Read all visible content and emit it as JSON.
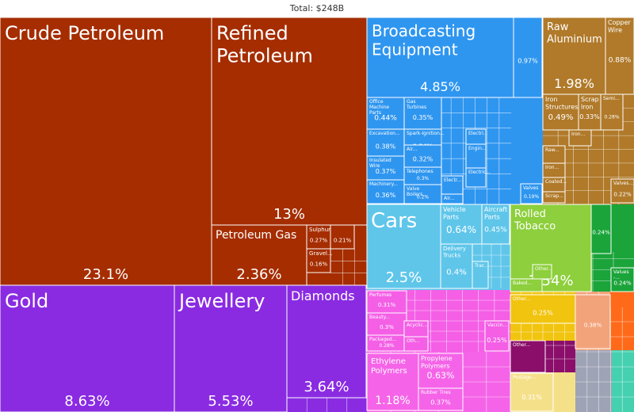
{
  "chart_data": {
    "type": "treemap",
    "title": "Total: $248B",
    "colors": {
      "petroleum": "#A52D00",
      "precious": "#8A2BE2",
      "electronics": "#2F96F0",
      "vehicles": "#5FC6EA",
      "metals": "#B07A2A",
      "tobacco": "#8DCF3C",
      "tobacco_dark": "#1BA43A",
      "chemicals": "#F45FE6",
      "plastics": "#F564E8",
      "stone": "#F1C40F",
      "purple_dark": "#8B0E6B",
      "textiles": "#F5E08A",
      "wood": "#F3A37A",
      "orange": "#FF6A1A",
      "gray": "#9EA3B5",
      "teal": "#45D0B0"
    },
    "items": [
      {
        "name": "Crude Petroleum",
        "value": "23.1%",
        "group": "petroleum"
      },
      {
        "name": "Refined Petroleum",
        "value": "13%",
        "group": "petroleum"
      },
      {
        "name": "Petroleum Gas",
        "value": "2.36%",
        "group": "petroleum"
      },
      {
        "name": "Sulphur",
        "value": "0.27%",
        "group": "petroleum"
      },
      {
        "name": "",
        "value": "0.21%",
        "group": "petroleum"
      },
      {
        "name": "Gravel...",
        "value": "0.16%",
        "group": "petroleum"
      },
      {
        "name": "Gold",
        "value": "8.63%",
        "group": "precious"
      },
      {
        "name": "Jewellery",
        "value": "5.53%",
        "group": "precious"
      },
      {
        "name": "Diamonds",
        "value": "3.64%",
        "group": "precious"
      },
      {
        "name": "Broadcasting Equipment",
        "value": "4.85%",
        "group": "electronics"
      },
      {
        "name": "",
        "value": "0.97%",
        "group": "electronics"
      },
      {
        "name": "Office Machine Parts",
        "value": "0.44%",
        "group": "electronics"
      },
      {
        "name": "Gas Turbines",
        "value": "0.35%",
        "group": "electronics"
      },
      {
        "name": "Excavation...",
        "value": "0.38%",
        "group": "electronics"
      },
      {
        "name": "Spark-Ignition...",
        "value": "0.34%",
        "group": "electronics"
      },
      {
        "name": "Insulated Wire",
        "value": "0.37%",
        "group": "electronics"
      },
      {
        "name": "Air...",
        "value": "0.32%",
        "group": "electronics"
      },
      {
        "name": "Machinery...",
        "value": "0.36%",
        "group": "electronics"
      },
      {
        "name": "Telephones",
        "value": "0.3%",
        "group": "electronics"
      },
      {
        "name": "Valve Boilers",
        "value": "0.2%",
        "group": "electronics"
      },
      {
        "name": "Electr...",
        "value": "",
        "group": "electronics"
      },
      {
        "name": "Engin...",
        "value": "",
        "group": "electronics"
      },
      {
        "name": "Electric...",
        "value": "",
        "group": "electronics"
      },
      {
        "name": "Electri...",
        "value": "",
        "group": "electronics"
      },
      {
        "name": "Air...",
        "value": "",
        "group": "electronics"
      },
      {
        "name": "Valves",
        "value": "0.19%",
        "group": "electronics"
      },
      {
        "name": "Cars",
        "value": "2.5%",
        "group": "vehicles"
      },
      {
        "name": "Vehicle Parts",
        "value": "0.64%",
        "group": "vehicles"
      },
      {
        "name": "Aircraft Parts",
        "value": "0.45%",
        "group": "vehicles"
      },
      {
        "name": "Delivery Trucks",
        "value": "0.4%",
        "group": "vehicles"
      },
      {
        "name": "Trac...",
        "value": "",
        "group": "vehicles"
      },
      {
        "name": "Raw Aluminium",
        "value": "1.98%",
        "group": "metals"
      },
      {
        "name": "Copper Wire",
        "value": "0.88%",
        "group": "metals"
      },
      {
        "name": "Iron Structures",
        "value": "0.49%",
        "group": "metals"
      },
      {
        "name": "Scrap Iron",
        "value": "0.33%",
        "group": "metals"
      },
      {
        "name": "Semi...",
        "value": "0.28%",
        "group": "metals"
      },
      {
        "name": "Iron...",
        "value": "",
        "group": "metals"
      },
      {
        "name": "Raw...",
        "value": "",
        "group": "metals"
      },
      {
        "name": "Iron...",
        "value": "",
        "group": "metals"
      },
      {
        "name": "Coated...",
        "value": "",
        "group": "metals"
      },
      {
        "name": "Valves...",
        "value": "0.22%",
        "group": "metals"
      },
      {
        "name": "Scrap...",
        "value": "",
        "group": "metals"
      },
      {
        "name": "Rolled Tobacco",
        "value": "1.54%",
        "group": "tobacco"
      },
      {
        "name": "Other...",
        "value": "",
        "group": "tobacco"
      },
      {
        "name": "Baked...",
        "value": "",
        "group": "tobacco"
      },
      {
        "name": "",
        "value": "0.24%",
        "group": "tobacco_dark"
      },
      {
        "name": "Values -...",
        "value": "0.24%",
        "group": "tobacco_dark"
      },
      {
        "name": "Perfumes",
        "value": "0.31%",
        "group": "chemicals"
      },
      {
        "name": "Beauty...",
        "value": "0.3%",
        "group": "chemicals"
      },
      {
        "name": "Packaged...",
        "value": "0.28%",
        "group": "chemicals"
      },
      {
        "name": "Acyclic...",
        "value": "",
        "group": "chemicals"
      },
      {
        "name": "Oth...",
        "value": "",
        "group": "chemicals"
      },
      {
        "name": "Vaccin...",
        "value": "0.25%",
        "group": "chemicals"
      },
      {
        "name": "Ethylene Polymers",
        "value": "1.18%",
        "group": "plastics"
      },
      {
        "name": "Propylene Polymers",
        "value": "0.63%",
        "group": "plastics"
      },
      {
        "name": "Rubber Tires",
        "value": "0.37%",
        "group": "plastics"
      },
      {
        "name": "Other...",
        "value": "0.25%",
        "group": "stone"
      },
      {
        "name": "Other...",
        "value": "",
        "group": "purple_dark"
      },
      {
        "name": "Postage...",
        "value": "0.31%",
        "group": "textiles"
      },
      {
        "name": "",
        "value": "0.38%",
        "group": "wood"
      }
    ]
  }
}
